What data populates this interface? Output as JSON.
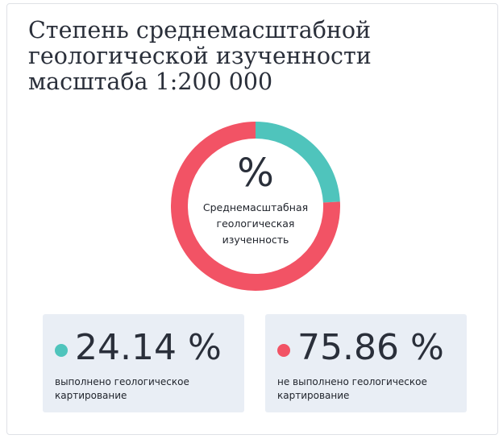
{
  "title": "Степень среднемасштабной геологической изученности масштаба 1:200 000",
  "colors": {
    "done": "#4fc4bc",
    "not_done": "#f25365"
  },
  "center": {
    "symbol": "%",
    "label": "Среднемасштабная геологическая изученность"
  },
  "chart_data": {
    "type": "pie",
    "variant": "donut",
    "title": "Степень среднемасштабной геологической изученности масштаба 1:200 000",
    "slices": [
      {
        "label": "выполнено геологическое картирование",
        "value": 24.14,
        "color": "#4fc4bc"
      },
      {
        "label": "не выполнено геологическое картирование",
        "value": 75.86,
        "color": "#f25365"
      }
    ]
  },
  "stats": [
    {
      "value": "24.14 %",
      "desc": "выполнено геологическое картирование"
    },
    {
      "value": "75.86 %",
      "desc": "не выполнено геологическое картирование"
    }
  ]
}
